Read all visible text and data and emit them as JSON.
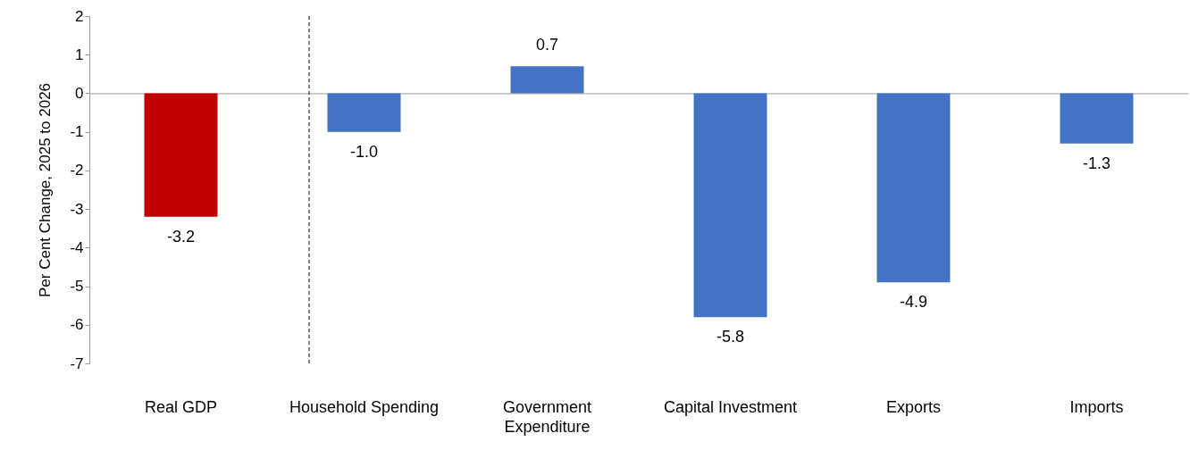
{
  "chart_data": {
    "type": "bar",
    "ylabel": "Per Cent Change, 2025  to 2026",
    "categories": [
      "Real GDP",
      "Household Spending",
      "Government Expenditure",
      "Capital Investment",
      "Exports",
      "Imports"
    ],
    "values": [
      -3.2,
      -1.0,
      0.7,
      -5.8,
      -4.9,
      -1.3
    ],
    "colors": [
      "#c00000",
      "#4472c4",
      "#4472c4",
      "#4472c4",
      "#4472c4",
      "#4472c4"
    ],
    "value_labels": [
      "-3.2",
      "-1.0",
      "0.7",
      "-5.8",
      "-4.9",
      "-1.3"
    ],
    "ylim": [
      -7,
      2
    ],
    "yticks": [
      -7,
      -6,
      -5,
      -4,
      -3,
      -2,
      -1,
      0,
      1,
      2
    ],
    "ref_lines": [
      {
        "axis": "x",
        "value": "Household Spending",
        "line_style": "dashed",
        "color": "#000000"
      }
    ]
  }
}
